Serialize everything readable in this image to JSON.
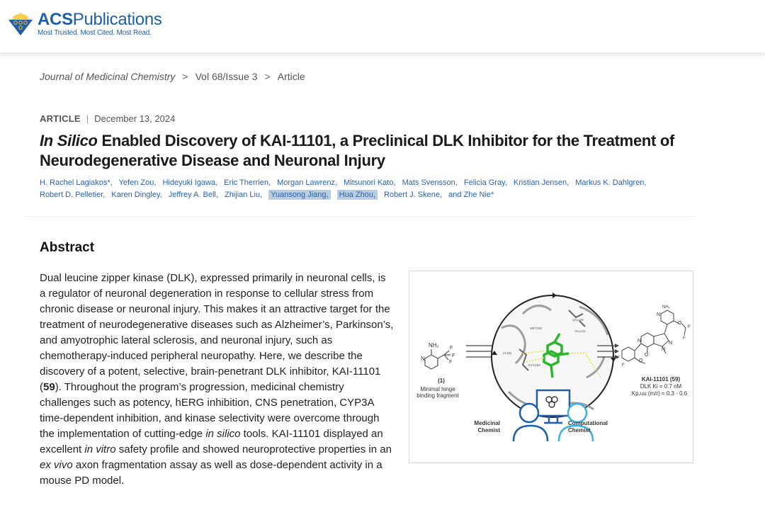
{
  "header": {
    "logo": {
      "brand_bold": "ACS",
      "brand_rest": "Publications",
      "tagline": "Most Trusted. Most Cited. Most Read.",
      "colors": {
        "brand_blue": "#1f5fa6",
        "mark_gold": "#f2c230"
      }
    }
  },
  "breadcrumb": {
    "items": [
      "Journal of Medicinal Chemistry",
      "Vol 68/Issue 3",
      "Article"
    ],
    "separator": ">"
  },
  "article_meta": {
    "type": "ARTICLE",
    "divider": "|",
    "date": "December 13, 2024"
  },
  "title": {
    "italic_part": "In Silico",
    "rest": " Enabled Discovery of KAI-11101, a Preclinical DLK Inhibitor for the Treatment of Neurodegenerative Disease and Neuronal Injury"
  },
  "authors": [
    {
      "name": "H. Rachel Lagiakos*,",
      "highlighted": false
    },
    {
      "name": "Yefen Zou,",
      "highlighted": false
    },
    {
      "name": "Hideyuki Igawa,",
      "highlighted": false
    },
    {
      "name": "Eric Therrien,",
      "highlighted": false
    },
    {
      "name": "Morgan Lawrenz,",
      "highlighted": false
    },
    {
      "name": "Mitsunori Kato,",
      "highlighted": false
    },
    {
      "name": "Mats Svensson,",
      "highlighted": false
    },
    {
      "name": "Felicia Gray,",
      "highlighted": false
    },
    {
      "name": "Kristian Jensen,",
      "highlighted": false
    },
    {
      "name": "Markus K. Dahlgren,",
      "highlighted": false
    },
    {
      "name": "Robert D. Pelletier,",
      "highlighted": false
    },
    {
      "name": "Karen Dingley,",
      "highlighted": false
    },
    {
      "name": "Jeffrey A. Bell,",
      "highlighted": false
    },
    {
      "name": "Zhijian Liu,",
      "highlighted": false
    },
    {
      "name": "Yuansong Jiang,",
      "highlighted": true
    },
    {
      "name": "Hua Zhou,",
      "highlighted": true
    },
    {
      "name": "Robert J. Skene,",
      "highlighted": false
    },
    {
      "name": "and  Zhe Nie*",
      "highlighted": false
    }
  ],
  "abstract": {
    "heading": "Abstract",
    "segments": [
      {
        "t": "Dual leucine zipper kinase (DLK), expressed primarily in neuronal cells, is a regulator of neuronal degeneration in response to cellular stress from chronic disease or neuronal injury. This makes it an attractive target for the treatment of neurodegenerative diseases such as Alzheimer’s, Parkinson’s, and amyotrophic lateral sclerosis, and neuronal injury, such as chemotherapy-induced peripheral neuropathy. Here, we describe the discovery of a potent, selective, brain-penetrant DLK inhibitor, KAI-11101 (",
        "s": "n"
      },
      {
        "t": "59",
        "s": "b"
      },
      {
        "t": "). Throughout the program’s progression, medicinal chemistry challenges such as potency, hERG inhibition, CNS penetration, CYP3A time-dependent inhibition, and kinase selectivity were overcome through the implementation of cutting-edge ",
        "s": "n"
      },
      {
        "t": "in silico",
        "s": "i"
      },
      {
        "t": " tools. KAI-11101 displayed an excellent ",
        "s": "n"
      },
      {
        "t": "in vitro",
        "s": "i"
      },
      {
        "t": " safety profile and showed neuroprotective properties in an ",
        "s": "n"
      },
      {
        "t": "ex vivo",
        "s": "i"
      },
      {
        "t": " axon fragmentation assay as well as dose-dependent activity in a mouse PD model.",
        "s": "n"
      }
    ]
  },
  "graphical_abstract": {
    "left_compound": {
      "label": "(1)",
      "caption_line1": "Minimal hinge",
      "caption_line2": "binding fragment",
      "atoms": [
        "NH2",
        "N",
        "F",
        "F",
        "F"
      ]
    },
    "pocket_residues": [
      "MET190",
      "VAL139",
      "VAL131",
      "CYS193",
      "LY191",
      "GLU"
    ],
    "right_compound": {
      "name": "KAI-11101 (59)",
      "line1": "DLK Ki = 0.7 nM",
      "line2": "Kp,uu (m/r) = 0.3 - 0.6",
      "atoms": [
        "NH2",
        "N",
        "O",
        "F",
        "F",
        "N",
        "N",
        "N",
        "O",
        "F",
        "F",
        "O"
      ]
    },
    "roles": {
      "left": [
        "Medicinal",
        "Chemist"
      ],
      "right": [
        "Computational",
        "Chemist"
      ]
    },
    "colors": {
      "medchem": "#1f5fa6",
      "compchem": "#39b2e6",
      "ligand": "#2db52d",
      "hbond": "#e8e03a"
    }
  }
}
